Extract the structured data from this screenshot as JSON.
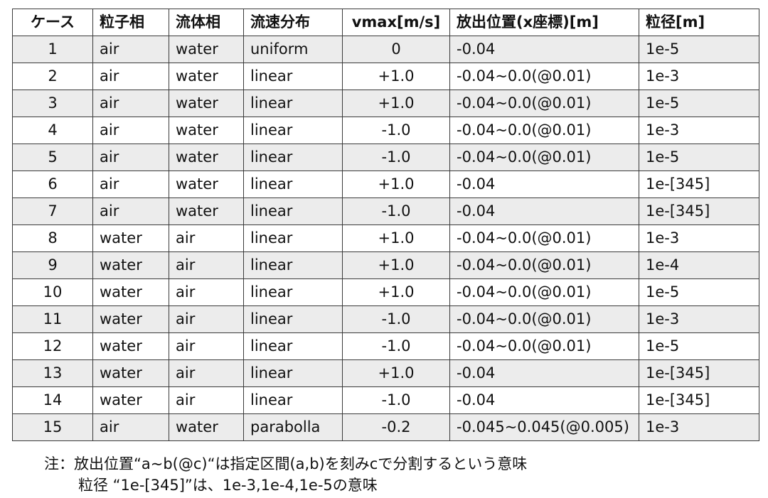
{
  "table": {
    "headers": [
      "ケース",
      "粒子相",
      "流体相",
      "流速分布",
      "vmax[m/s]",
      "放出位置(x座標)[m]",
      "粒径[m]"
    ],
    "rows": [
      [
        "1",
        "air",
        "water",
        "uniform",
        "0",
        "-0.04",
        "1e-5"
      ],
      [
        "2",
        "air",
        "water",
        "linear",
        "+1.0",
        "-0.04~0.0(@0.01)",
        "1e-3"
      ],
      [
        "3",
        "air",
        "water",
        "linear",
        "+1.0",
        "-0.04~0.0(@0.01)",
        "1e-5"
      ],
      [
        "4",
        "air",
        "water",
        "linear",
        "-1.0",
        "-0.04~0.0(@0.01)",
        "1e-3"
      ],
      [
        "5",
        "air",
        "water",
        "linear",
        "-1.0",
        "-0.04~0.0(@0.01)",
        "1e-5"
      ],
      [
        "6",
        "air",
        "water",
        "linear",
        "+1.0",
        "-0.04",
        "1e-[345]"
      ],
      [
        "7",
        "air",
        "water",
        "linear",
        "-1.0",
        "-0.04",
        "1e-[345]"
      ],
      [
        "8",
        "water",
        "air",
        "linear",
        "+1.0",
        "-0.04~0.0(@0.01)",
        "1e-3"
      ],
      [
        "9",
        "water",
        "air",
        "linear",
        "+1.0",
        "-0.04~0.0(@0.01)",
        "1e-4"
      ],
      [
        "10",
        "water",
        "air",
        "linear",
        "+1.0",
        "-0.04~0.0(@0.01)",
        "1e-5"
      ],
      [
        "11",
        "water",
        "air",
        "linear",
        "-1.0",
        "-0.04~0.0(@0.01)",
        "1e-3"
      ],
      [
        "12",
        "water",
        "air",
        "linear",
        "-1.0",
        "-0.04~0.0(@0.01)",
        "1e-5"
      ],
      [
        "13",
        "water",
        "air",
        "linear",
        "+1.0",
        "-0.04",
        "1e-[345]"
      ],
      [
        "14",
        "water",
        "air",
        "linear",
        "-1.0",
        "-0.04",
        "1e-[345]"
      ],
      [
        "15",
        "air",
        "water",
        "parabolla",
        "-0.2",
        "-0.045~0.045(@0.005)",
        "1e-3"
      ]
    ]
  },
  "notes": {
    "line1": "注：放出位置“a~b(@c)“は指定区間(a,b)を刻みcで分割するという意味",
    "line2": "粒径 “1e-[345]”は、1e-3,1e-4,1e-5の意味"
  }
}
